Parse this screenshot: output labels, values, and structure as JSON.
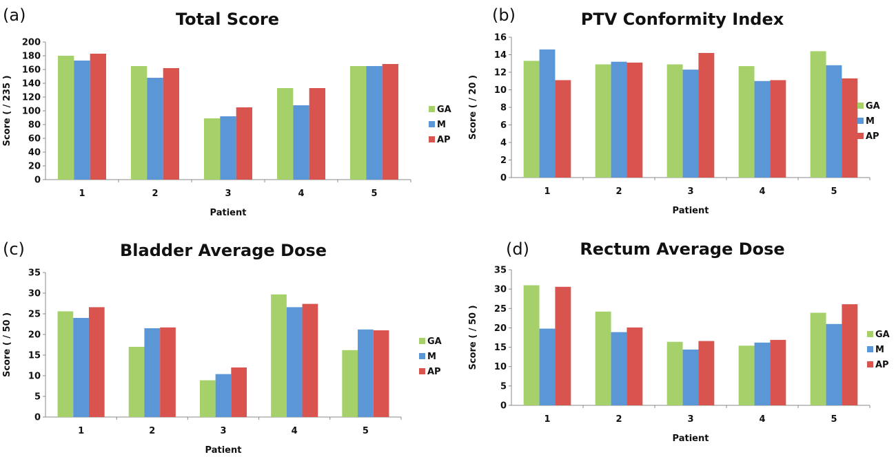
{
  "chart_data": [
    {
      "panel": "(a)",
      "type": "bar",
      "title": "Total Score",
      "xlabel": "Patient",
      "ylabel": "Score ( / 235 )",
      "ylim": [
        0,
        200
      ],
      "ystep": 20,
      "categories": [
        "1",
        "2",
        "3",
        "4",
        "5"
      ],
      "series": [
        {
          "name": "GA",
          "color": "#a6d16a",
          "values": [
            180,
            165,
            89,
            133,
            165
          ]
        },
        {
          "name": "M",
          "color": "#5b97d6",
          "values": [
            173,
            148,
            92,
            108,
            165
          ]
        },
        {
          "name": "AP",
          "color": "#d9534f",
          "values": [
            183,
            162,
            105,
            133,
            168
          ]
        }
      ],
      "legend": "right",
      "grid": false
    },
    {
      "panel": "(b)",
      "type": "bar",
      "title": "PTV Conformity Index",
      "xlabel": "Patient",
      "ylabel": "Score ( / 20 )",
      "ylim": [
        0,
        16
      ],
      "ystep": 2,
      "categories": [
        "1",
        "2",
        "3",
        "4",
        "5"
      ],
      "series": [
        {
          "name": "GA",
          "color": "#a6d16a",
          "values": [
            13.3,
            12.9,
            12.9,
            12.7,
            14.4
          ]
        },
        {
          "name": "M",
          "color": "#5b97d6",
          "values": [
            14.6,
            13.2,
            12.3,
            11.0,
            12.8
          ]
        },
        {
          "name": "AP",
          "color": "#d9534f",
          "values": [
            11.1,
            13.1,
            14.2,
            11.1,
            11.3
          ]
        }
      ],
      "legend": "right",
      "grid": false
    },
    {
      "panel": "(c)",
      "type": "bar",
      "title": "Bladder Average Dose",
      "xlabel": "Patient",
      "ylabel": "Score ( / 50 )",
      "ylim": [
        0,
        35
      ],
      "ystep": 5,
      "categories": [
        "1",
        "2",
        "3",
        "4",
        "5"
      ],
      "series": [
        {
          "name": "GA",
          "color": "#a6d16a",
          "values": [
            25.6,
            17.0,
            8.9,
            29.7,
            16.2
          ]
        },
        {
          "name": "M",
          "color": "#5b97d6",
          "values": [
            24.0,
            21.5,
            10.4,
            26.6,
            21.2
          ]
        },
        {
          "name": "AP",
          "color": "#d9534f",
          "values": [
            26.6,
            21.7,
            12.0,
            27.4,
            21.0
          ]
        }
      ],
      "legend": "right",
      "grid": false
    },
    {
      "panel": "(d)",
      "type": "bar",
      "title": "Rectum Average Dose",
      "xlabel": "Patient",
      "ylabel": "Score ( / 50 )",
      "ylim": [
        0,
        35
      ],
      "ystep": 5,
      "categories": [
        "1",
        "2",
        "3",
        "4",
        "5"
      ],
      "series": [
        {
          "name": "GA",
          "color": "#a6d16a",
          "values": [
            31.0,
            24.2,
            16.4,
            15.4,
            23.9
          ]
        },
        {
          "name": "M",
          "color": "#5b97d6",
          "values": [
            19.8,
            18.9,
            14.4,
            16.2,
            21.0
          ]
        },
        {
          "name": "AP",
          "color": "#d9534f",
          "values": [
            30.6,
            20.1,
            16.6,
            16.9,
            26.1
          ]
        }
      ],
      "legend": "right",
      "grid": false
    }
  ]
}
